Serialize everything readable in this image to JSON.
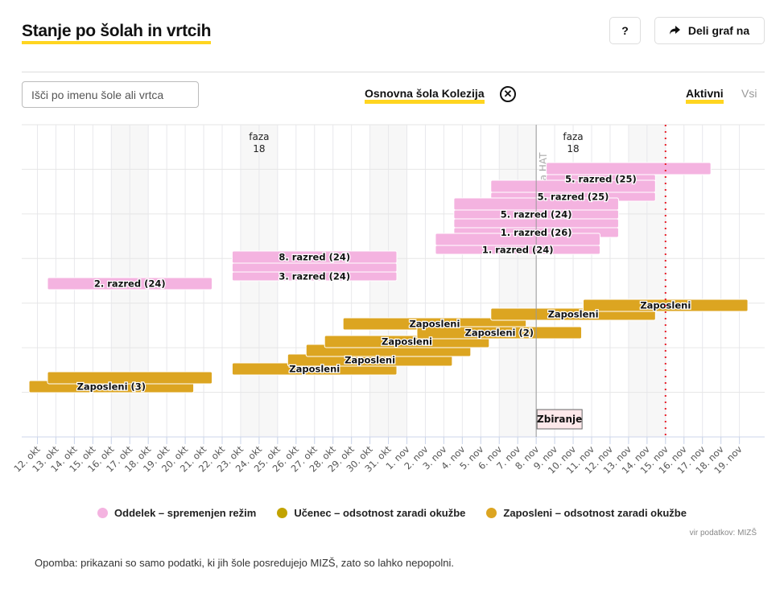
{
  "header": {
    "title": "Stanje po šolah in vrtcih",
    "help_label": "?",
    "share_label": "Deli graf na",
    "share_icon": "share-arrow-icon"
  },
  "filters": {
    "search_placeholder": "Išči po imenu šole ali vrtca",
    "selected_school": "Osnovna šola Kolezija",
    "clear_icon": "close-circle-icon",
    "toggle_active": "Aktivni",
    "toggle_all": "Vsi"
  },
  "chart_data": {
    "type": "gantt",
    "x_categories": [
      "12. okt",
      "13. okt",
      "14. okt",
      "15. okt",
      "16. okt",
      "17. okt",
      "18. okt",
      "19. okt",
      "20. okt",
      "21. okt",
      "22. okt",
      "23. okt",
      "24. okt",
      "25. okt",
      "26. okt",
      "27. okt",
      "28. okt",
      "29. okt",
      "30. okt",
      "31. okt",
      "1. nov",
      "2. nov",
      "3. nov",
      "4. nov",
      "5. nov",
      "6. nov",
      "7. nov",
      "8. nov",
      "9. nov",
      "10. nov",
      "11. nov",
      "12. nov",
      "13. nov",
      "14. nov",
      "15. nov",
      "16. nov",
      "17. nov",
      "18. nov",
      "19. nov"
    ],
    "shaded_days": [
      [
        "17. okt",
        "18. okt"
      ],
      [
        "24. okt",
        "25. okt"
      ],
      [
        "31. okt",
        "1. nov"
      ],
      [
        "7. nov",
        "8. nov"
      ],
      [
        "14. nov",
        "15. nov"
      ]
    ],
    "phase_labels": [
      {
        "line1": "faza",
        "line2": "18",
        "date": "24. okt"
      },
      {
        "line1": "faza",
        "line2": "18",
        "date": "10. nov"
      }
    ],
    "marker_line": {
      "date": "8. nov",
      "label": "aria HAT",
      "box_label": "Zbiranje"
    },
    "today_line": {
      "date": "15. nov",
      "color": "#e8202a"
    },
    "colors": {
      "oddelek": "#f4b3e0",
      "ucenec": "#c2a300",
      "zaposleni": "#dca521"
    },
    "bars": [
      {
        "category": "oddelek",
        "start": "13. okt",
        "end": "21. okt",
        "label": "2. razred (24)"
      },
      {
        "category": "oddelek",
        "start": "23. okt",
        "end": "31. okt",
        "label": "8. razred (24)"
      },
      {
        "category": "oddelek",
        "start": "23. okt",
        "end": "31. okt",
        "label": ""
      },
      {
        "category": "oddelek",
        "start": "23. okt",
        "end": "31. okt",
        "label": "3. razred (24)"
      },
      {
        "category": "oddelek",
        "start": "9. nov",
        "end": "17. nov",
        "label": ""
      },
      {
        "category": "oddelek",
        "start": "9. nov",
        "end": "14. nov",
        "label": "5. razred (25)"
      },
      {
        "category": "oddelek",
        "start": "6. nov",
        "end": "14. nov",
        "label": ""
      },
      {
        "category": "oddelek",
        "start": "6. nov",
        "end": "14. nov",
        "label": "5. razred (25)"
      },
      {
        "category": "oddelek",
        "start": "4. nov",
        "end": "12. nov",
        "label": ""
      },
      {
        "category": "oddelek",
        "start": "4. nov",
        "end": "12. nov",
        "label": "5. razred (24)"
      },
      {
        "category": "oddelek",
        "start": "4. nov",
        "end": "12. nov",
        "label": ""
      },
      {
        "category": "oddelek",
        "start": "4. nov",
        "end": "12. nov",
        "label": "1. razred (26)"
      },
      {
        "category": "oddelek",
        "start": "3. nov",
        "end": "11. nov",
        "label": ""
      },
      {
        "category": "oddelek",
        "start": "3. nov",
        "end": "11. nov",
        "label": "1. razred (24)"
      },
      {
        "category": "zaposleni",
        "start": "12. okt",
        "end": "20. okt",
        "label": "Zaposleni (3)"
      },
      {
        "category": "zaposleni",
        "start": "13. okt",
        "end": "21. okt",
        "label": ""
      },
      {
        "category": "zaposleni",
        "start": "23. okt",
        "end": "31. okt",
        "label": "Zaposleni"
      },
      {
        "category": "zaposleni",
        "start": "26. okt",
        "end": "3. nov",
        "label": "Zaposleni"
      },
      {
        "category": "zaposleni",
        "start": "27. okt",
        "end": "4. nov",
        "label": ""
      },
      {
        "category": "zaposleni",
        "start": "28. okt",
        "end": "5. nov",
        "label": "Zaposleni"
      },
      {
        "category": "zaposleni",
        "start": "29. okt",
        "end": "7. nov",
        "label": "Zaposleni"
      },
      {
        "category": "zaposleni",
        "start": "2. nov",
        "end": "10. nov",
        "label": "Zaposleni (2)"
      },
      {
        "category": "zaposleni",
        "start": "6. nov",
        "end": "14. nov",
        "label": "Zaposleni"
      },
      {
        "category": "zaposleni",
        "start": "11. nov",
        "end": "19. nov",
        "label": "Zaposleni"
      }
    ],
    "legend": [
      {
        "key": "oddelek",
        "label": "Oddelek – spremenjen režim"
      },
      {
        "key": "ucenec",
        "label": "Učenec – odsotnost zaradi okužbe"
      },
      {
        "key": "zaposleni",
        "label": "Zaposleni – odsotnost zaradi okužbe"
      }
    ],
    "legend_placement": "bottom",
    "grid": true
  },
  "footer": {
    "source": "vir podatkov: MIZŠ",
    "note": "Opomba: prikazani so samo podatki, ki jih šole posredujejo MIZŠ, zato so lahko nepopolni."
  }
}
